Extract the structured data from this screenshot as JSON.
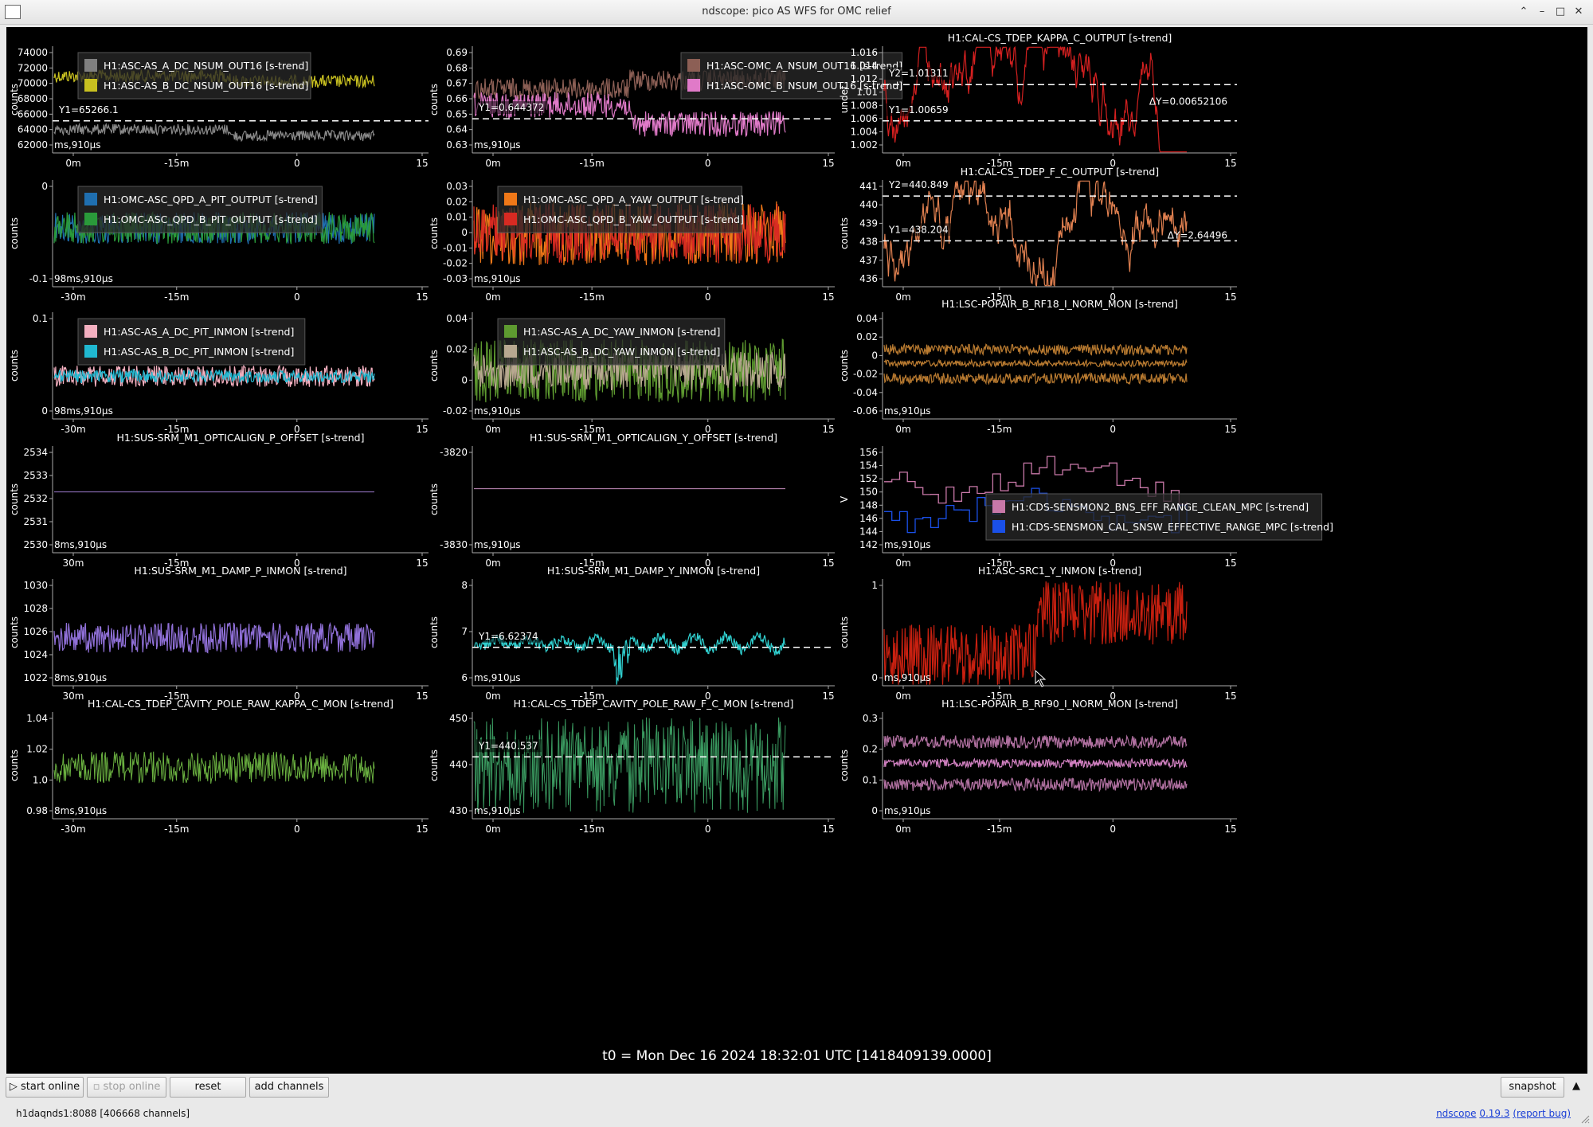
{
  "window": {
    "title": "ndscope: pico AS WFS for OMC relief",
    "minimize": "⌃",
    "maximize_a": "–",
    "maximize_b": "□",
    "close": "✕"
  },
  "t0": "t0 = Mon Dec 16 2024 18:32:01 UTC [1418409139.0000]",
  "buttons": {
    "start_online": "start online",
    "stop_online": "stop online",
    "reset": "reset",
    "add_channels": "add channels",
    "snapshot": "snapshot"
  },
  "status": {
    "server": "h1daqnds1:8088  [406668 channels]",
    "app_link": "ndscope",
    "version": "0.19.3",
    "report_bug": "(report bug)"
  },
  "plots": [
    {
      "id": "p1",
      "ylabel": "counts",
      "yticks": [
        "74000",
        "72000",
        "70000",
        "68000",
        "66000",
        "64000",
        "62000"
      ],
      "xticks": [
        "0m",
        "-15m",
        "0",
        "15"
      ],
      "toffset": "ms,910µs",
      "legend": [
        {
          "label": "H1:ASC-AS_A_DC_NSUM_OUT16 [s-trend]",
          "color": "#808080"
        },
        {
          "label": "H1:ASC-AS_B_DC_NSUM_OUT16 [s-trend]",
          "color": "#c8c020"
        }
      ],
      "cursors": [
        {
          "label": "Y1=65266.1"
        }
      ]
    },
    {
      "id": "p2",
      "ylabel": "counts",
      "yticks": [
        "0.69",
        "0.68",
        "0.67",
        "0.66",
        "0.65",
        "0.64",
        "0.63"
      ],
      "xticks": [
        "0m",
        "-15m",
        "0",
        "15"
      ],
      "toffset": "ms,910µs",
      "legend": [
        {
          "label": "H1:ASC-OMC_A_NSUM_OUT16 [s-trend]",
          "color": "#8c5f55"
        },
        {
          "label": "H1:ASC-OMC_B_NSUM_OUT16 [s-trend]",
          "color": "#e07ac8"
        }
      ],
      "cursors": [
        {
          "label": "Y1=0.644372"
        }
      ]
    },
    {
      "id": "p3",
      "title": "H1:CAL-CS_TDEP_KAPPA_C_OUTPUT [s-trend]",
      "ylabel": "undef",
      "yticks": [
        "1.016",
        "1.014",
        "1.012",
        "1.01",
        "1.008",
        "1.006",
        "1.004",
        "1.002"
      ],
      "xticks": [
        "0m",
        "-15m",
        "0",
        "15"
      ],
      "cursors": [
        {
          "label": "Y2=1.01311"
        },
        {
          "label": "Y1=1.00659"
        }
      ],
      "delta": "ΔY=0.00652106"
    },
    {
      "id": "p4",
      "ylabel": "counts",
      "yticks": [
        "0",
        "-0.1"
      ],
      "xticks": [
        "-30m",
        "-15m",
        "0",
        "15"
      ],
      "toffset": "98ms,910µs",
      "legend": [
        {
          "label": "H1:OMC-ASC_QPD_A_PIT_OUTPUT [s-trend]",
          "color": "#1f6fb0"
        },
        {
          "label": "H1:OMC-ASC_QPD_B_PIT_OUTPUT [s-trend]",
          "color": "#2a9a3a"
        }
      ]
    },
    {
      "id": "p5",
      "ylabel": "counts",
      "yticks": [
        "0.03",
        "0.02",
        "0.01",
        "0",
        "-0.01",
        "-0.02",
        "-0.03"
      ],
      "xticks": [
        "0m",
        "-15m",
        "0",
        "15"
      ],
      "toffset": "ms,910µs",
      "legend": [
        {
          "label": "H1:OMC-ASC_QPD_A_YAW_OUTPUT [s-trend]",
          "color": "#f07818"
        },
        {
          "label": "H1:OMC-ASC_QPD_B_YAW_OUTPUT [s-trend]",
          "color": "#d82a22"
        }
      ]
    },
    {
      "id": "p6",
      "title": "H1:CAL-CS_TDEP_F_C_OUTPUT [s-trend]",
      "ylabel": "counts",
      "yticks": [
        "441",
        "440",
        "439",
        "438",
        "437",
        "436"
      ],
      "xticks": [
        "0m",
        "-15m",
        "0",
        "15"
      ],
      "cursors": [
        {
          "label": "Y2=440.849"
        },
        {
          "label": "Y1=438.204"
        }
      ],
      "delta": "ΔY=2.64496"
    },
    {
      "id": "p7",
      "ylabel": "counts",
      "yticks": [
        "0.1",
        "0"
      ],
      "xticks": [
        "-30m",
        "-15m",
        "0",
        "15"
      ],
      "toffset": "98ms,910µs",
      "legend": [
        {
          "label": "H1:ASC-AS_A_DC_PIT_INMON [s-trend]",
          "color": "#f4b0c0"
        },
        {
          "label": "H1:ASC-AS_B_DC_PIT_INMON [s-trend]",
          "color": "#20b8d0"
        }
      ]
    },
    {
      "id": "p8",
      "ylabel": "counts",
      "yticks": [
        "0.04",
        "0.02",
        "0",
        "-0.02"
      ],
      "xticks": [
        "0m",
        "-15m",
        "0",
        "15"
      ],
      "toffset": "ms,910µs",
      "legend": [
        {
          "label": "H1:ASC-AS_A_DC_YAW_INMON [s-trend]",
          "color": "#5e9a30"
        },
        {
          "label": "H1:ASC-AS_B_DC_YAW_INMON [s-trend]",
          "color": "#b8a890"
        }
      ]
    },
    {
      "id": "p9",
      "title": "H1:LSC-POPAIR_B_RF18_I_NORM_MON [s-trend]",
      "ylabel": "counts",
      "yticks": [
        "0.04",
        "0.02",
        "0",
        "-0.02",
        "-0.04",
        "-0.06"
      ],
      "xticks": [
        "0m",
        "-15m",
        "0",
        "15"
      ],
      "toffset": "ms,910µs"
    },
    {
      "id": "p10",
      "title": "H1:SUS-SRM_M1_OPTICALIGN_P_OFFSET [s-trend]",
      "ylabel": "counts",
      "yticks": [
        "2534",
        "2533",
        "2532",
        "2531",
        "2530"
      ],
      "xticks": [
        "30m",
        "-15m",
        "0",
        "15"
      ],
      "toffset": "8ms,910µs"
    },
    {
      "id": "p11",
      "title": "H1:SUS-SRM_M1_OPTICALIGN_Y_OFFSET [s-trend]",
      "ylabel": "counts",
      "yticks": [
        "-3820",
        "-3830"
      ],
      "xticks": [
        "0m",
        "-15m",
        "0",
        "15"
      ],
      "toffset": "ms,910µs"
    },
    {
      "id": "p12",
      "ylabel": "V",
      "yticks": [
        "156",
        "154",
        "152",
        "150",
        "148",
        "146",
        "144",
        "142"
      ],
      "xticks": [
        "0m",
        "-15m",
        "0",
        "15"
      ],
      "toffset": "ms,910µs",
      "legend": [
        {
          "label": "H1:CDS-SENSMON2_BNS_EFF_RANGE_CLEAN_MPC [s-trend]",
          "color": "#c878a8"
        },
        {
          "label": "H1:CDS-SENSMON_CAL_SNSW_EFFECTIVE_RANGE_MPC [s-trend]",
          "color": "#1a50e8"
        }
      ]
    },
    {
      "id": "p13",
      "title": "H1:SUS-SRM_M1_DAMP_P_INMON [s-trend]",
      "ylabel": "counts",
      "yticks": [
        "1030",
        "1028",
        "1026",
        "1024",
        "1022"
      ],
      "xticks": [
        "30m",
        "-15m",
        "0",
        "15"
      ],
      "toffset": "8ms,910µs"
    },
    {
      "id": "p14",
      "title": "H1:SUS-SRM_M1_DAMP_Y_INMON [s-trend]",
      "ylabel": "counts",
      "yticks": [
        "8",
        "7",
        "6"
      ],
      "xticks": [
        "0m",
        "-15m",
        "0",
        "15"
      ],
      "toffset": "ms,910µs",
      "cursors": [
        {
          "label": "Y1=6.62374"
        }
      ]
    },
    {
      "id": "p15",
      "title": "H1:ASC-SRC1_Y_INMON [s-trend]",
      "ylabel": "counts",
      "yticks": [
        "1",
        "0"
      ],
      "xticks": [
        "0m",
        "-15m",
        "0",
        "15"
      ],
      "toffset": "ms,910µs"
    },
    {
      "id": "p16",
      "title": "H1:CAL-CS_TDEP_CAVITY_POLE_RAW_KAPPA_C_MON [s-trend]",
      "ylabel": "counts",
      "yticks": [
        "1.04",
        "1.02",
        "1.0",
        "0.98"
      ],
      "xticks": [
        "-30m",
        "-15m",
        "0",
        "15"
      ],
      "toffset": "8ms,910µs"
    },
    {
      "id": "p17",
      "title": "H1:CAL-CS_TDEP_CAVITY_POLE_RAW_F_C_MON [s-trend]",
      "ylabel": "counts",
      "yticks": [
        "450",
        "440",
        "430"
      ],
      "xticks": [
        "0m",
        "-15m",
        "0",
        "15"
      ],
      "toffset": "ms,910µs",
      "cursors": [
        {
          "label": "Y1=440.537"
        }
      ]
    },
    {
      "id": "p18",
      "title": "H1:LSC-POPAIR_B_RF90_I_NORM_MON [s-trend]",
      "ylabel": "counts",
      "yticks": [
        "0.3",
        "0.2",
        "0.1",
        "0"
      ],
      "xticks": [
        "0m",
        "-15m",
        "0",
        "15"
      ],
      "toffset": "ms,910µs"
    }
  ]
}
